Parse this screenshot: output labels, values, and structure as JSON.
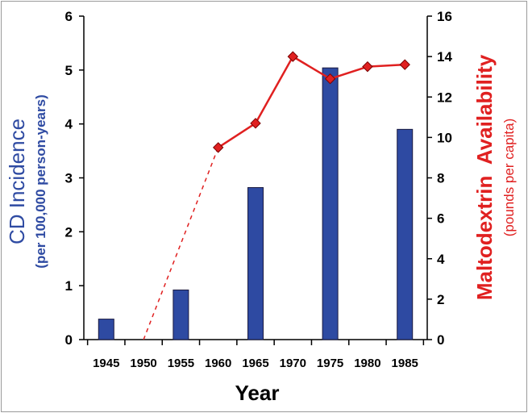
{
  "chart_data": {
    "type": "bar",
    "categories": [
      "1945",
      "1950",
      "1955",
      "1960",
      "1965",
      "1970",
      "1975",
      "1980",
      "1985"
    ],
    "series": [
      {
        "name": "CD Incidence",
        "axis": "left",
        "type": "bar",
        "x": [
          1945,
          1955,
          1965,
          1975,
          1985
        ],
        "values": [
          0.38,
          0.92,
          2.82,
          5.04,
          3.9
        ],
        "color": "#2e4aa2"
      },
      {
        "name": "Maltodextrin Availability",
        "axis": "right",
        "type": "line",
        "x": [
          1960,
          1965,
          1970,
          1975,
          1980,
          1985
        ],
        "values": [
          9.5,
          10.7,
          14.0,
          12.9,
          13.5,
          13.6
        ],
        "color": "#e02020"
      }
    ],
    "dashed_segment": {
      "x": [
        1950,
        1960
      ],
      "values": [
        0,
        9.5
      ]
    },
    "xlabel": "Year",
    "ylabel_left": "CD Incidence",
    "ylabel_left_sub": "(per 100,000 person-years)",
    "ylabel_right": "Maltodextrin  Availability",
    "ylabel_right_sub": "(pounds per capita)",
    "ylim_left": [
      0,
      6
    ],
    "ylim_right": [
      0,
      16
    ],
    "xlim": [
      1942,
      1988
    ],
    "left_ticks": [
      "0",
      "1",
      "2",
      "3",
      "4",
      "5",
      "6"
    ],
    "right_ticks": [
      "0",
      "2",
      "4",
      "6",
      "8",
      "10",
      "12",
      "14",
      "16"
    ],
    "x_ticks": [
      "1945",
      "1950",
      "1955",
      "1960",
      "1965",
      "1970",
      "1975",
      "1980",
      "1985"
    ],
    "grid": false,
    "legend": "none"
  }
}
